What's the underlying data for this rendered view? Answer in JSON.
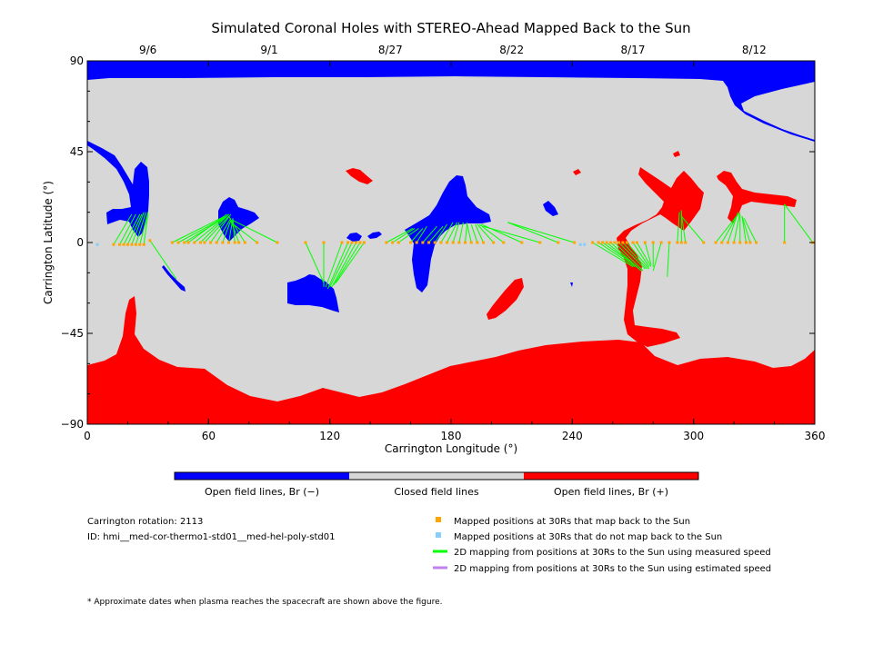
{
  "chart_data": {
    "type": "scatter",
    "title": "Simulated Coronal Holes with STEREO-Ahead Mapped Back to the Sun",
    "xlabel": "Carrington Longitude (°)",
    "ylabel": "Carrington Latitude (°)",
    "xlim": [
      0,
      360
    ],
    "ylim": [
      -90,
      90
    ],
    "x_ticks": [
      "0",
      "60",
      "120",
      "180",
      "240",
      "300",
      "360"
    ],
    "y_ticks": [
      "90",
      "45",
      "0",
      "-45",
      "-90"
    ],
    "top_date_labels": [
      {
        "label": "9/6",
        "lon": 30
      },
      {
        "label": "9/1",
        "lon": 90
      },
      {
        "label": "8/27",
        "lon": 150
      },
      {
        "label": "8/22",
        "lon": 210
      },
      {
        "label": "8/17",
        "lon": 270
      },
      {
        "label": "8/12",
        "lon": 330
      }
    ],
    "colorbar": [
      {
        "label": "Open field lines, Br (−)",
        "color": "#0000ff"
      },
      {
        "label": "Closed field lines",
        "color": "#d7d7d7"
      },
      {
        "label": "Open field lines, Br (+)",
        "color": "#ff0000"
      }
    ],
    "legend": [
      {
        "label": "Mapped positions at 30Rs that map back to the Sun",
        "marker": "square",
        "color": "#ffa500"
      },
      {
        "label": "Mapped positions at 30Rs that do not map back to the Sun",
        "marker": "square",
        "color": "#87cefa"
      },
      {
        "label": "2D mapping from positions at 30Rs to the Sun using measured speed",
        "marker": "line",
        "color": "#00ff00"
      },
      {
        "label": "2D mapping from positions at 30Rs to the Sun using estimated speed",
        "marker": "line",
        "color": "#c080f0"
      }
    ],
    "info": {
      "rotation": "Carrington rotation: 2113",
      "id": "ID: hmi__med-cor-thermo1-std01__med-hel-poly-std01"
    },
    "footnote": "* Approximate dates when plasma reaches the spacecraft are shown above the figure.",
    "colors": {
      "open_negative": "#0000ff",
      "closed": "#d7d7d7",
      "open_positive": "#ff0000",
      "mapped": "#ffa500",
      "unmapped": "#87cefa",
      "measured_line": "#00ff00",
      "estimated_line": "#c080f0"
    },
    "unmapped_points": [
      {
        "lon": 5,
        "lat": -1
      },
      {
        "lon": 244,
        "lat": -1
      },
      {
        "lon": 246,
        "lat": -1
      }
    ],
    "mapped_connections": [
      {
        "lon": 13,
        "lat": -1,
        "to": [
          22,
          14
        ]
      },
      {
        "lon": 16,
        "lat": -1,
        "to": [
          24,
          14
        ]
      },
      {
        "lon": 18,
        "lat": -1,
        "to": [
          26,
          14
        ]
      },
      {
        "lon": 20,
        "lat": -1,
        "to": [
          27,
          14
        ]
      },
      {
        "lon": 22,
        "lat": -1,
        "to": [
          28,
          15
        ]
      },
      {
        "lon": 24,
        "lat": -1,
        "to": [
          29,
          15
        ]
      },
      {
        "lon": 26,
        "lat": -1,
        "to": [
          30,
          15
        ]
      },
      {
        "lon": 28,
        "lat": -1,
        "to": [
          30,
          14
        ]
      },
      {
        "lon": 31,
        "lat": 1,
        "to": [
          44,
          -18
        ]
      },
      {
        "lon": 42,
        "lat": 0,
        "to": [
          68,
          13
        ]
      },
      {
        "lon": 45,
        "lat": 0,
        "to": [
          69,
          13
        ]
      },
      {
        "lon": 48,
        "lat": 0,
        "to": [
          69,
          13
        ]
      },
      {
        "lon": 50,
        "lat": 0,
        "to": [
          69,
          14
        ]
      },
      {
        "lon": 53,
        "lat": 0,
        "to": [
          70,
          14
        ]
      },
      {
        "lon": 56,
        "lat": 0,
        "to": [
          70,
          14
        ]
      },
      {
        "lon": 58,
        "lat": 0,
        "to": [
          70,
          13
        ]
      },
      {
        "lon": 61,
        "lat": 0,
        "to": [
          71,
          14
        ]
      },
      {
        "lon": 64,
        "lat": 0,
        "to": [
          71,
          12
        ]
      },
      {
        "lon": 67,
        "lat": 0,
        "to": [
          71,
          11
        ]
      },
      {
        "lon": 70,
        "lat": 0,
        "to": [
          72,
          12
        ]
      },
      {
        "lon": 73,
        "lat": 0,
        "to": [
          72,
          12
        ]
      },
      {
        "lon": 75,
        "lat": 0,
        "to": [
          71,
          11
        ]
      },
      {
        "lon": 78,
        "lat": 0,
        "to": [
          70,
          13
        ]
      },
      {
        "lon": 84,
        "lat": 0,
        "to": [
          71,
          10
        ]
      },
      {
        "lon": 94,
        "lat": 0,
        "to": [
          72,
          11
        ]
      },
      {
        "lon": 108,
        "lat": 0,
        "to": [
          117,
          -20
        ]
      },
      {
        "lon": 117,
        "lat": 0,
        "to": [
          117,
          -22
        ]
      },
      {
        "lon": 126,
        "lat": 0,
        "to": [
          118,
          -22
        ]
      },
      {
        "lon": 129,
        "lat": 0,
        "to": [
          119,
          -23
        ]
      },
      {
        "lon": 131,
        "lat": 0,
        "to": [
          120,
          -22
        ]
      },
      {
        "lon": 133,
        "lat": 0,
        "to": [
          121,
          -22
        ]
      },
      {
        "lon": 135,
        "lat": 0,
        "to": [
          122,
          -21
        ]
      },
      {
        "lon": 137,
        "lat": 0,
        "to": [
          123,
          -20
        ]
      },
      {
        "lon": 148,
        "lat": 0,
        "to": [
          161,
          7
        ]
      },
      {
        "lon": 151,
        "lat": 0,
        "to": [
          162,
          7
        ]
      },
      {
        "lon": 154,
        "lat": 0,
        "to": [
          164,
          7
        ]
      },
      {
        "lon": 160,
        "lat": 0,
        "to": [
          166,
          7
        ]
      },
      {
        "lon": 163,
        "lat": 0,
        "to": [
          168,
          8
        ]
      },
      {
        "lon": 166,
        "lat": 0,
        "to": [
          173,
          8
        ]
      },
      {
        "lon": 169,
        "lat": 0,
        "to": [
          176,
          8
        ]
      },
      {
        "lon": 172,
        "lat": 0,
        "to": [
          178,
          9
        ]
      },
      {
        "lon": 175,
        "lat": 0,
        "to": [
          181,
          10
        ]
      },
      {
        "lon": 178,
        "lat": 0,
        "to": [
          183,
          10
        ]
      },
      {
        "lon": 181,
        "lat": 0,
        "to": [
          184,
          10
        ]
      },
      {
        "lon": 184,
        "lat": 0,
        "to": [
          186,
          10
        ]
      },
      {
        "lon": 187,
        "lat": 0,
        "to": [
          188,
          10
        ]
      },
      {
        "lon": 190,
        "lat": 0,
        "to": [
          188,
          9
        ]
      },
      {
        "lon": 193,
        "lat": 0,
        "to": [
          190,
          9
        ]
      },
      {
        "lon": 196,
        "lat": 0,
        "to": [
          192,
          9
        ]
      },
      {
        "lon": 201,
        "lat": 0,
        "to": [
          193,
          9
        ]
      },
      {
        "lon": 206,
        "lat": 0,
        "to": [
          194,
          9
        ]
      },
      {
        "lon": 215,
        "lat": 0,
        "to": [
          195,
          9
        ]
      },
      {
        "lon": 224,
        "lat": 0,
        "to": [
          196,
          8
        ]
      },
      {
        "lon": 233,
        "lat": 0,
        "to": [
          208,
          10
        ]
      },
      {
        "lon": 241,
        "lat": 0,
        "to": [
          208,
          10
        ]
      },
      {
        "lon": 250,
        "lat": 0,
        "to": [
          270,
          -12
        ]
      },
      {
        "lon": 253,
        "lat": 0,
        "to": [
          271,
          -12
        ]
      },
      {
        "lon": 255,
        "lat": 0,
        "to": [
          272,
          -12
        ]
      },
      {
        "lon": 257,
        "lat": 0,
        "to": [
          273,
          -13
        ]
      },
      {
        "lon": 259,
        "lat": 0,
        "to": [
          274,
          -14
        ]
      },
      {
        "lon": 261,
        "lat": 0,
        "to": [
          275,
          -14
        ]
      },
      {
        "lon": 263,
        "lat": 0,
        "to": [
          276,
          -13
        ]
      },
      {
        "lon": 265,
        "lat": 0,
        "to": [
          277,
          -13
        ]
      },
      {
        "lon": 267,
        "lat": 0,
        "to": [
          278,
          -13
        ]
      },
      {
        "lon": 270,
        "lat": 0,
        "to": [
          278,
          -12
        ]
      },
      {
        "lon": 272,
        "lat": 0,
        "to": [
          279,
          -12
        ]
      },
      {
        "lon": 276,
        "lat": 0,
        "to": [
          279,
          -11
        ]
      },
      {
        "lon": 280,
        "lat": 0,
        "to": [
          280,
          -12
        ]
      },
      {
        "lon": 284,
        "lat": 0,
        "to": [
          280,
          -14
        ]
      },
      {
        "lon": 288,
        "lat": 0,
        "to": [
          287,
          -17
        ]
      },
      {
        "lon": 292,
        "lat": 0,
        "to": [
          293,
          15
        ]
      },
      {
        "lon": 294,
        "lat": 0,
        "to": [
          294,
          16
        ]
      },
      {
        "lon": 296,
        "lat": 0,
        "to": [
          294,
          14
        ]
      },
      {
        "lon": 305,
        "lat": 0,
        "to": [
          294,
          13
        ]
      },
      {
        "lon": 311,
        "lat": 0,
        "to": [
          322,
          14
        ]
      },
      {
        "lon": 314,
        "lat": 0,
        "to": [
          322,
          14
        ]
      },
      {
        "lon": 317,
        "lat": 0,
        "to": [
          322,
          15
        ]
      },
      {
        "lon": 320,
        "lat": 0,
        "to": [
          323,
          15
        ]
      },
      {
        "lon": 323,
        "lat": 0,
        "to": [
          323,
          14
        ]
      },
      {
        "lon": 326,
        "lat": 0,
        "to": [
          324,
          13
        ]
      },
      {
        "lon": 328,
        "lat": 0,
        "to": [
          324,
          13
        ]
      },
      {
        "lon": 331,
        "lat": 0,
        "to": [
          325,
          12
        ]
      },
      {
        "lon": 345,
        "lat": 0,
        "to": [
          345,
          19
        ]
      },
      {
        "lon": 359,
        "lat": 0,
        "to": [
          345,
          19
        ]
      }
    ]
  }
}
